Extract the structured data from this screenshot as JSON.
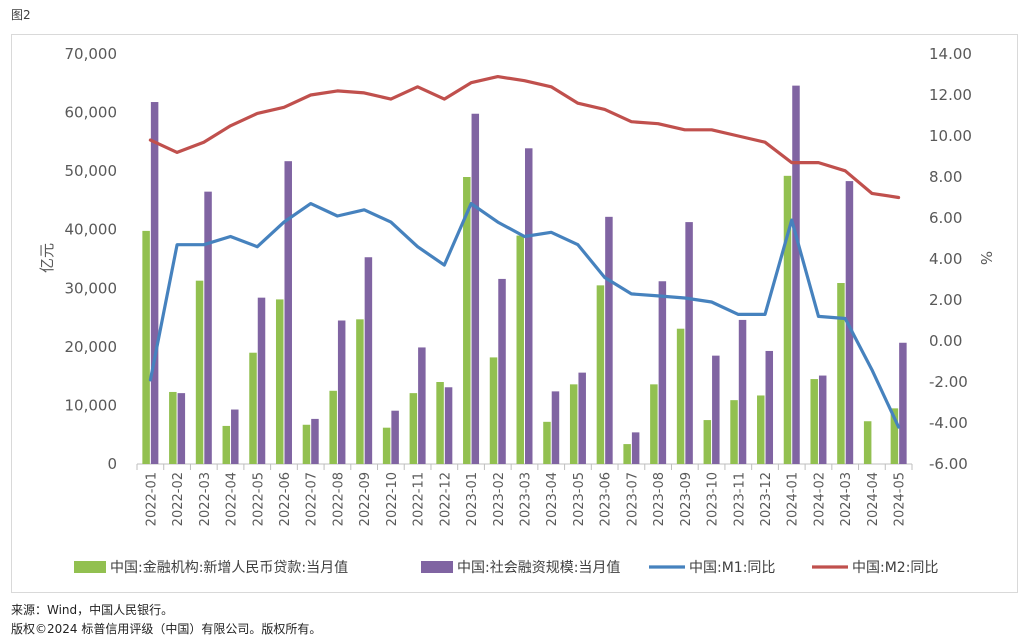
{
  "figure_label": "图2",
  "source_note": "来源：Wind，中国人民银行。",
  "copyright_note": "版权©2024 标普信用评级（中国）有限公司。版权所有。",
  "chart_data": {
    "type": "bar+line",
    "categories": [
      "2022-01",
      "2022-02",
      "2022-03",
      "2022-04",
      "2022-05",
      "2022-06",
      "2022-07",
      "2022-08",
      "2022-09",
      "2022-10",
      "2022-11",
      "2022-12",
      "2023-01",
      "2023-02",
      "2023-03",
      "2023-04",
      "2023-05",
      "2023-06",
      "2023-07",
      "2023-08",
      "2023-09",
      "2023-10",
      "2023-11",
      "2023-12",
      "2024-01",
      "2024-02",
      "2024-03",
      "2024-04",
      "2024-05"
    ],
    "ylabel_left": "亿元",
    "ylabel_right": "%",
    "ylim_left": [
      0,
      70000
    ],
    "ylim_right": [
      -6,
      14
    ],
    "left_ticks": [
      "0",
      "10,000",
      "20,000",
      "30,000",
      "40,000",
      "50,000",
      "60,000",
      "70,000"
    ],
    "right_ticks": [
      "-6.00",
      "-4.00",
      "-2.00",
      "0.00",
      "2.00",
      "4.00",
      "6.00",
      "8.00",
      "10.00",
      "12.00",
      "14.00"
    ],
    "series": [
      {
        "name": "中国:金融机构:新增人民币贷款:当月值",
        "type": "bar",
        "axis": "left",
        "color": "#92c050",
        "values": [
          39800,
          12300,
          31300,
          6500,
          19000,
          28100,
          6700,
          12500,
          24700,
          6200,
          12100,
          14000,
          49000,
          18200,
          39000,
          7200,
          13600,
          30500,
          3400,
          13600,
          23100,
          7500,
          10900,
          11700,
          49200,
          14500,
          30900,
          7300,
          9500
        ]
      },
      {
        "name": "中国:社会融资规模:当月值",
        "type": "bar",
        "axis": "left",
        "color": "#8064a2",
        "values": [
          61800,
          12100,
          46500,
          9300,
          28400,
          51700,
          7700,
          24500,
          35300,
          9100,
          19900,
          13100,
          59800,
          31600,
          53900,
          12400,
          15600,
          42200,
          5400,
          31200,
          41300,
          18500,
          24600,
          19300,
          64600,
          15100,
          48300,
          0,
          20700
        ]
      },
      {
        "name": "中国:M1:同比",
        "type": "line",
        "axis": "right",
        "color": "#4682be",
        "values": [
          -1.9,
          4.7,
          4.7,
          5.1,
          4.6,
          5.8,
          6.7,
          6.1,
          6.4,
          5.8,
          4.6,
          3.7,
          6.7,
          5.8,
          5.1,
          5.3,
          4.7,
          3.1,
          2.3,
          2.2,
          2.1,
          1.9,
          1.3,
          1.3,
          5.9,
          1.2,
          1.1,
          -1.4,
          -4.2
        ]
      },
      {
        "name": "中国:M2:同比",
        "type": "line",
        "axis": "right",
        "color": "#c0504d",
        "values": [
          9.8,
          9.2,
          9.7,
          10.5,
          11.1,
          11.4,
          12.0,
          12.2,
          12.1,
          11.8,
          12.4,
          11.8,
          12.6,
          12.9,
          12.7,
          12.4,
          11.6,
          11.3,
          10.7,
          10.6,
          10.3,
          10.3,
          10.0,
          9.7,
          8.7,
          8.7,
          8.3,
          7.2,
          7.0
        ]
      }
    ],
    "legend_position": "bottom",
    "grid": true
  }
}
